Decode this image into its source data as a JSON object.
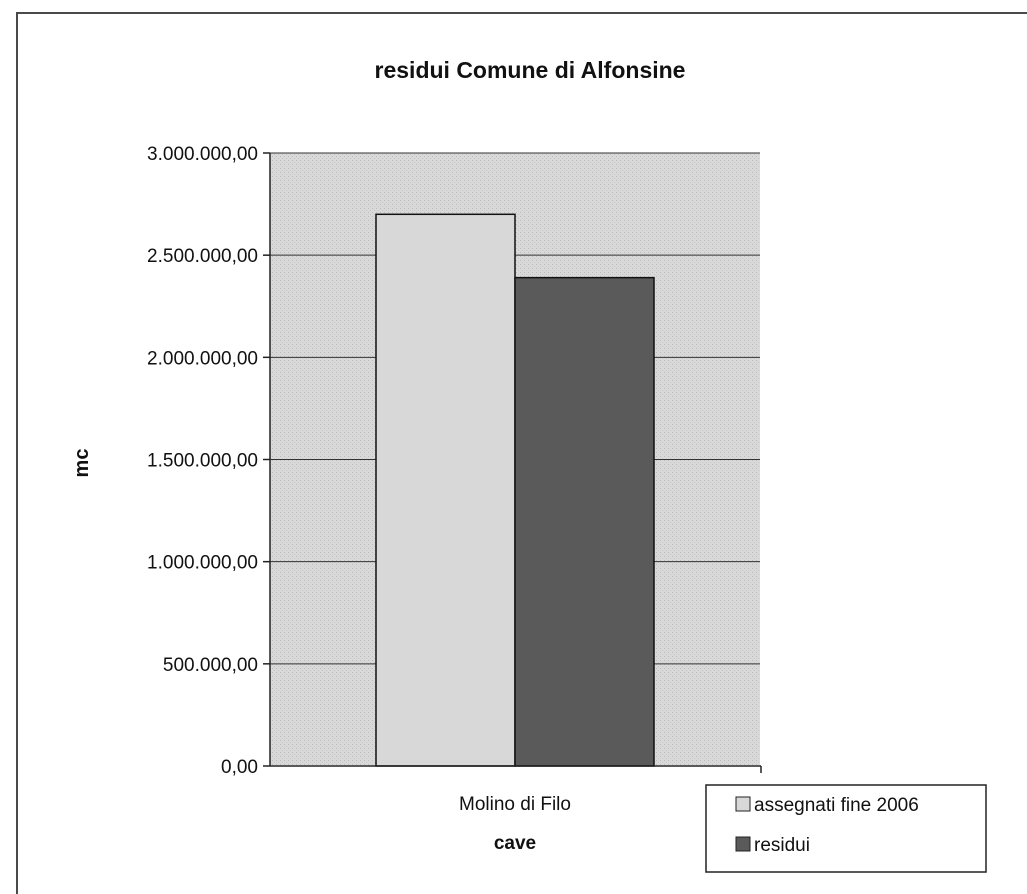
{
  "chart_data": {
    "type": "bar",
    "title": "residui Comune di Alfonsine",
    "xlabel": "cave",
    "ylabel": "mc",
    "categories": [
      "Molino di Filo"
    ],
    "series": [
      {
        "name": "assegnati fine 2006",
        "values": [
          2700000
        ],
        "color": "#d8d8d8"
      },
      {
        "name": "residui",
        "values": [
          2390000
        ],
        "color": "#5a5a5a"
      }
    ],
    "ylim": [
      0,
      3000000
    ],
    "yticks": [
      "0,00",
      "500.000,00",
      "1.000.000,00",
      "1.500.000,00",
      "2.000.000,00",
      "2.500.000,00",
      "3.000.000,00"
    ],
    "ytick_values": [
      0,
      500000,
      1000000,
      1500000,
      2000000,
      2500000,
      3000000
    ],
    "grid": true,
    "legend_position": "bottom-right",
    "plot_background": "#d4d4d4"
  }
}
